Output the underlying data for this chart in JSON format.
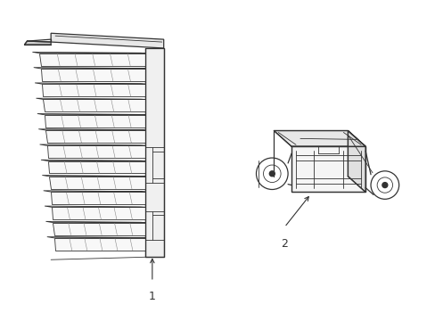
{
  "background_color": "#ffffff",
  "line_color": "#333333",
  "fig_width": 4.89,
  "fig_height": 3.6,
  "dpi": 100,
  "part1_label": "1",
  "part2_label": "2"
}
